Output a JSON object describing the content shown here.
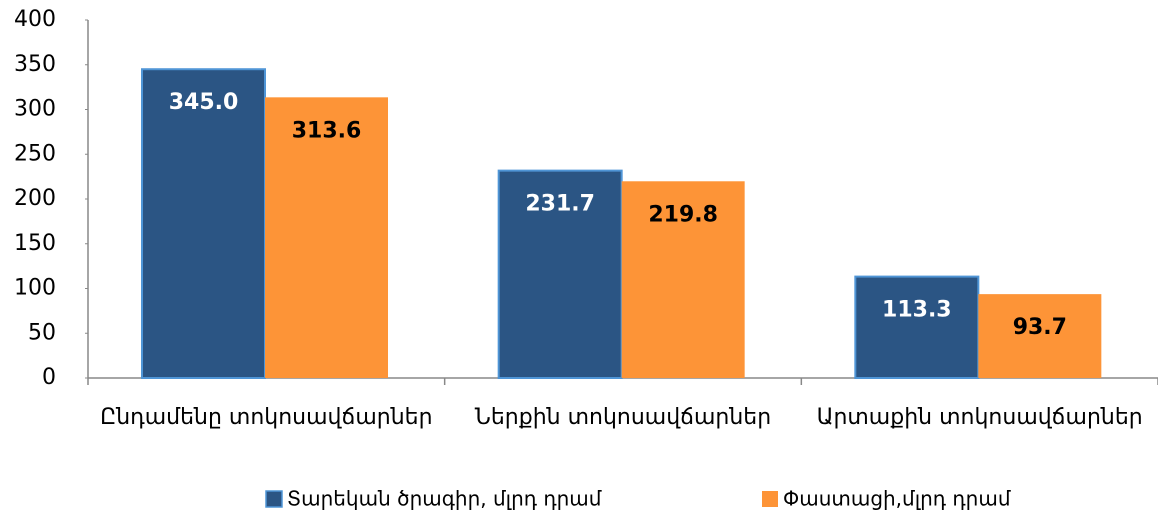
{
  "chart_data": {
    "type": "bar",
    "categories": [
      "Ընդամենը տոկոսավճարներ",
      "Ներքին  տոկոսավճարներ",
      "Արտաքին տոկոսավճարներ"
    ],
    "series": [
      {
        "name": "Տարեկան ծրագիր, մլրդ դրամ",
        "color": "#2b5584",
        "values": [
          345.0,
          231.7,
          113.3
        ],
        "value_labels": [
          "345.0",
          "231.7",
          "113.3"
        ]
      },
      {
        "name": "Փաստացի,մլրդ դրամ",
        "color": "#fd9437",
        "values": [
          313.6,
          219.8,
          93.7
        ],
        "value_labels": [
          "313.6",
          "219.8",
          "93.7"
        ]
      }
    ],
    "ylim": [
      0,
      400
    ],
    "yticks": [
      0,
      50,
      100,
      150,
      200,
      250,
      300,
      350,
      400
    ],
    "legend": "bottom"
  }
}
